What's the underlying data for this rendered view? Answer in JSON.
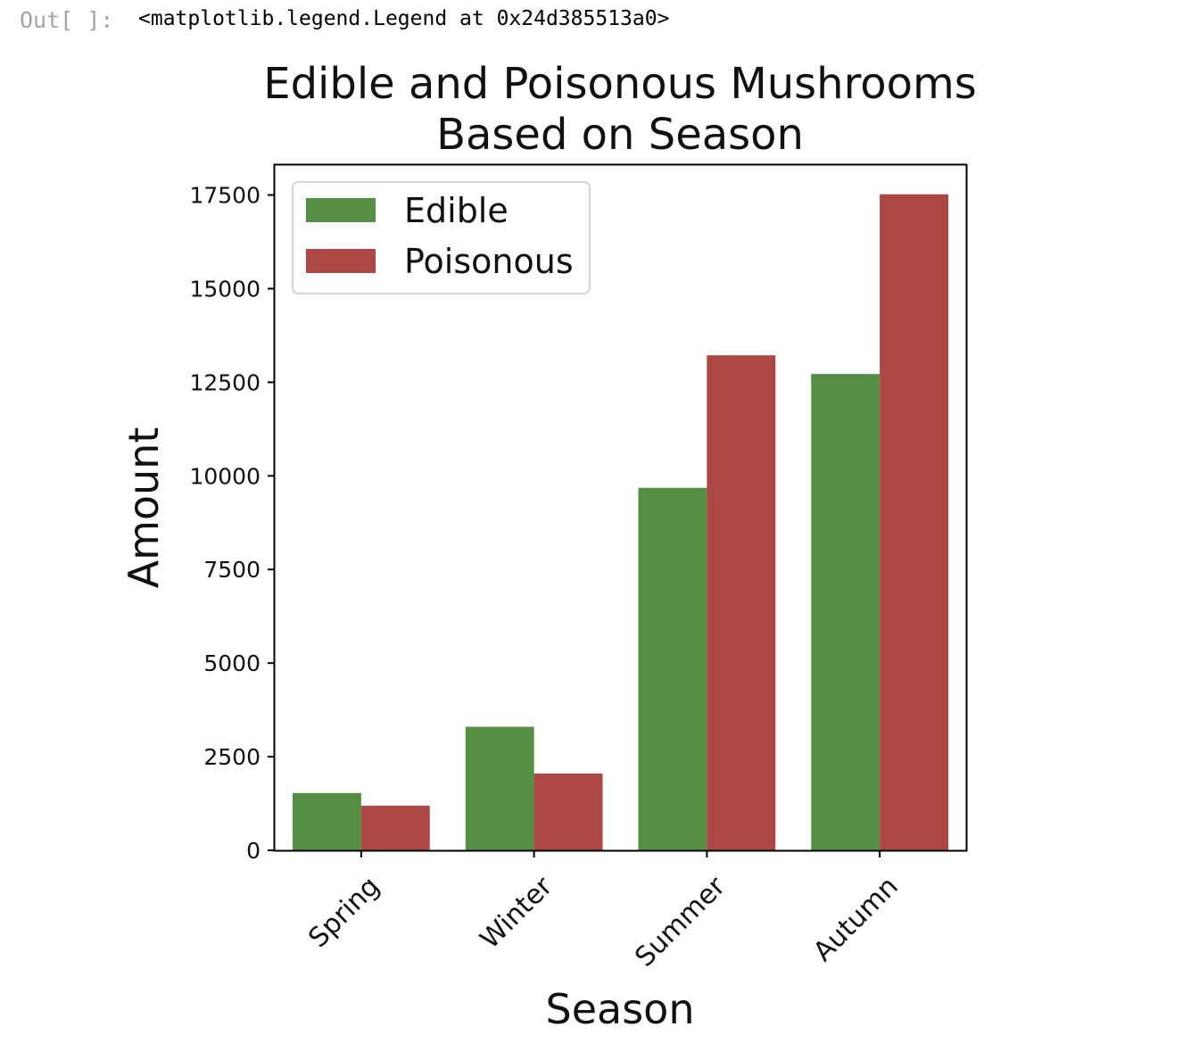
{
  "cell": {
    "prompt": "Out[ ]:",
    "output_text": "<matplotlib.legend.Legend at 0x24d385513a0>"
  },
  "chart_data": {
    "type": "bar",
    "title_line1": "Edible and Poisonous Mushrooms",
    "title_line2": "Based on Season",
    "xlabel": "Season",
    "ylabel": "Amount",
    "categories": [
      "Spring",
      "Winter",
      "Summer",
      "Autumn"
    ],
    "series": [
      {
        "name": "Edible",
        "color": "#548f44",
        "values": [
          1530,
          3300,
          9680,
          12720
        ]
      },
      {
        "name": "Poisonous",
        "color": "#ad4745",
        "values": [
          1190,
          2050,
          13220,
          17520
        ]
      }
    ],
    "ylim": [
      0,
      18300
    ],
    "yticks": [
      0,
      2500,
      5000,
      7500,
      10000,
      12500,
      15000,
      17500
    ],
    "ytick_labels": [
      "0",
      "2500",
      "5000",
      "7500",
      "10000",
      "12500",
      "15000",
      "17500"
    ],
    "legend_position": "top-left",
    "grid": false
  }
}
